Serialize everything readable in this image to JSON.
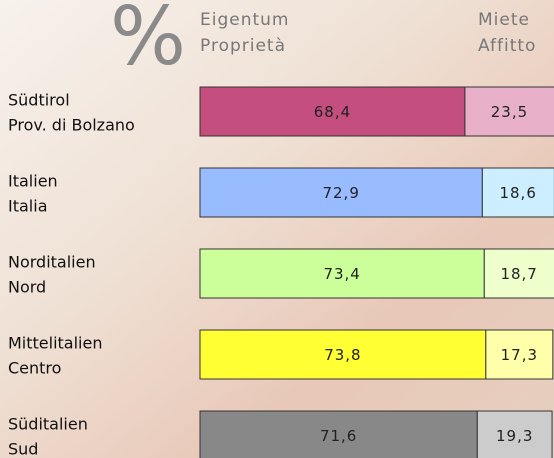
{
  "chart_data": {
    "type": "stacked-hbar",
    "symbol": "%",
    "categories": [
      [
        "Südtirol",
        "Prov. di Bolzano"
      ],
      [
        "Italien",
        "Italia"
      ],
      [
        "Norditalien",
        "Nord"
      ],
      [
        "Mittelitalien",
        "Centro"
      ],
      [
        "Süditalien",
        "Sud"
      ]
    ],
    "series": [
      {
        "name": [
          "Eigentum",
          "Proprietà"
        ],
        "colors": [
          "#c44e7e",
          "#99bbff",
          "#ccff99",
          "#ffff33",
          "#888888"
        ],
        "values": [
          68.4,
          72.9,
          73.4,
          73.8,
          71.6
        ],
        "value_labels": [
          "68,4",
          "72,9",
          "73,4",
          "73,8",
          "71,6"
        ]
      },
      {
        "name": [
          "Miete",
          "Affitto"
        ],
        "colors": [
          "#e8b0c8",
          "#cceeff",
          "#eeffcc",
          "#ffffaa",
          "#cccccc"
        ],
        "values": [
          23.5,
          18.6,
          18.7,
          17.3,
          19.3
        ],
        "value_labels": [
          "23,5",
          "18,6",
          "18,7",
          "17,3",
          "19,3"
        ]
      }
    ],
    "xlim": [
      0,
      91.4
    ]
  }
}
